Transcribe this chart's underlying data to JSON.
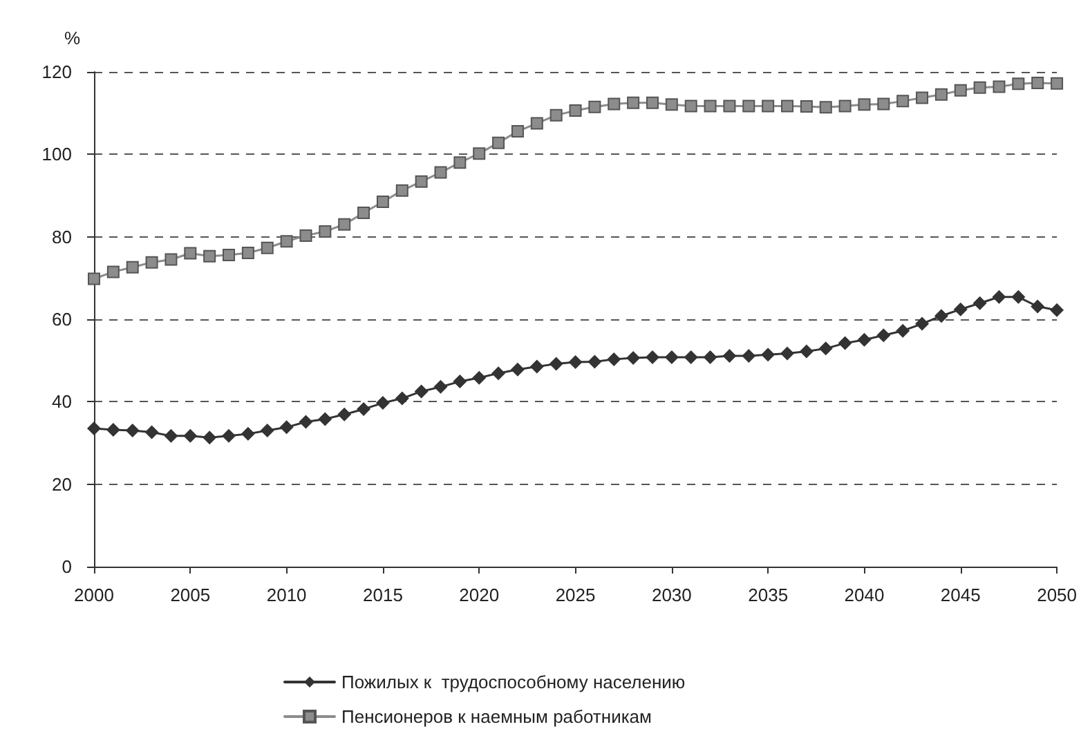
{
  "chart_data": {
    "type": "line",
    "ylabel": "%",
    "x": [
      2000,
      2001,
      2002,
      2003,
      2004,
      2005,
      2006,
      2007,
      2008,
      2009,
      2010,
      2011,
      2012,
      2013,
      2014,
      2015,
      2016,
      2017,
      2018,
      2019,
      2020,
      2021,
      2022,
      2023,
      2024,
      2025,
      2026,
      2027,
      2028,
      2029,
      2030,
      2031,
      2032,
      2033,
      2034,
      2035,
      2036,
      2037,
      2038,
      2039,
      2040,
      2041,
      2042,
      2043,
      2044,
      2045,
      2046,
      2047,
      2048,
      2049,
      2050
    ],
    "series": [
      {
        "name": "Пожилых к  трудоспособному населению",
        "color": "#333333",
        "marker": "diamond",
        "values": [
          33.5,
          33.2,
          33.0,
          32.6,
          31.7,
          31.7,
          31.3,
          31.7,
          32.2,
          33.0,
          33.8,
          35.1,
          35.8,
          36.9,
          38.2,
          39.7,
          40.8,
          42.5,
          43.6,
          44.9,
          45.8,
          46.9,
          47.8,
          48.5,
          49.2,
          49.6,
          49.7,
          50.3,
          50.6,
          50.8,
          50.8,
          50.8,
          50.8,
          51.1,
          51.1,
          51.4,
          51.7,
          52.2,
          52.9,
          54.2,
          55.0,
          56.1,
          57.2,
          58.9,
          60.8,
          62.4,
          63.9,
          65.4,
          65.4,
          63.1,
          62.2
        ]
      },
      {
        "name": "Пенсионеров к наемным работникам",
        "color": "#8c8c8c",
        "marker": "square",
        "values": [
          69.8,
          71.5,
          72.6,
          73.8,
          74.5,
          76.0,
          75.3,
          75.6,
          76.1,
          77.3,
          78.9,
          80.3,
          81.3,
          83.0,
          85.8,
          88.5,
          91.2,
          93.4,
          95.6,
          98.0,
          100.2,
          102.8,
          105.6,
          107.5,
          109.5,
          110.6,
          111.5,
          112.2,
          112.5,
          112.5,
          112.1,
          111.7,
          111.7,
          111.7,
          111.7,
          111.7,
          111.7,
          111.6,
          111.4,
          111.7,
          112.1,
          112.2,
          112.9,
          113.7,
          114.5,
          115.5,
          116.2,
          116.4,
          117.1,
          117.3,
          117.2
        ]
      }
    ],
    "xlim": [
      2000,
      2050
    ],
    "xticks": [
      2000,
      2005,
      2010,
      2015,
      2020,
      2025,
      2030,
      2035,
      2040,
      2045,
      2050
    ],
    "ylim": [
      0,
      120
    ],
    "yticks": [
      0,
      20,
      40,
      60,
      80,
      100,
      120
    ],
    "grid": "y",
    "line_style": "solid",
    "legend": "bottom"
  }
}
